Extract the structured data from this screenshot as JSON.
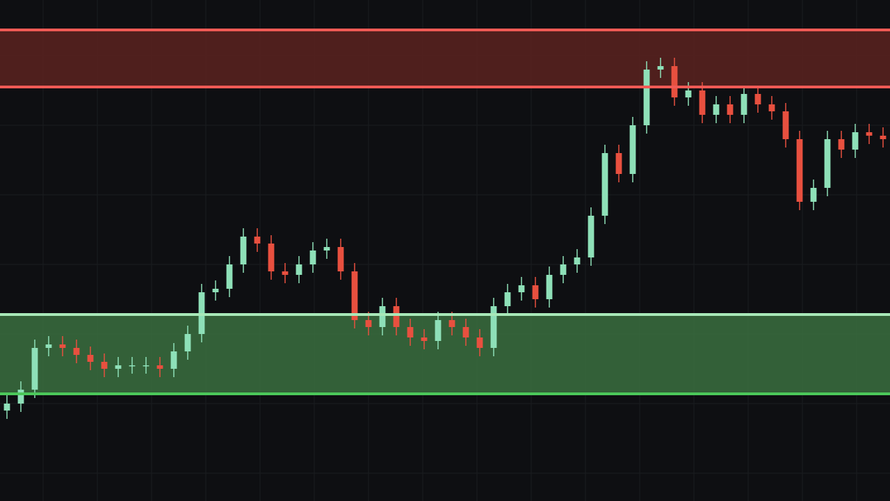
{
  "chart_data": {
    "type": "candlestick",
    "background": "#0e0f12",
    "up_color": "#8ee0b8",
    "down_color": "#e8503f",
    "ylim": [
      0,
      720
    ],
    "grid": true,
    "grid_color": "#1a1c20",
    "open": [
      130,
      140,
      160,
      220,
      225,
      220,
      210,
      200,
      190,
      195,
      195,
      195,
      190,
      215,
      240,
      300,
      305,
      340,
      380,
      370,
      330,
      325,
      340,
      360,
      365,
      330,
      260,
      250,
      280,
      250,
      235,
      230,
      260,
      250,
      235,
      220,
      280,
      300,
      310,
      290,
      325,
      340,
      350,
      410,
      500,
      470,
      540,
      620,
      625,
      580,
      590,
      555,
      570,
      555,
      585,
      570,
      560,
      520,
      430,
      450,
      520,
      505,
      530,
      525
    ],
    "high": [
      152,
      172,
      232,
      237,
      237,
      232,
      222,
      212,
      207,
      207,
      207,
      207,
      227,
      252,
      312,
      317,
      352,
      392,
      392,
      382,
      342,
      352,
      372,
      377,
      377,
      342,
      272,
      292,
      292,
      262,
      247,
      272,
      272,
      262,
      247,
      292,
      312,
      322,
      322,
      337,
      352,
      362,
      422,
      512,
      512,
      552,
      632,
      637,
      637,
      602,
      602,
      582,
      582,
      597,
      597,
      582,
      572,
      532,
      462,
      532,
      532,
      542,
      542,
      537
    ],
    "low": [
      118,
      128,
      148,
      208,
      208,
      198,
      188,
      178,
      178,
      183,
      183,
      178,
      178,
      203,
      228,
      288,
      293,
      328,
      358,
      318,
      313,
      313,
      328,
      348,
      318,
      248,
      238,
      238,
      238,
      223,
      218,
      218,
      238,
      223,
      208,
      208,
      268,
      288,
      278,
      278,
      313,
      328,
      338,
      398,
      458,
      458,
      528,
      608,
      568,
      568,
      543,
      543,
      543,
      543,
      558,
      548,
      508,
      418,
      418,
      438,
      493,
      493,
      513,
      508
    ],
    "close": [
      140,
      160,
      220,
      225,
      220,
      210,
      200,
      190,
      195,
      195,
      195,
      190,
      215,
      240,
      300,
      305,
      340,
      380,
      370,
      330,
      325,
      340,
      360,
      365,
      330,
      260,
      250,
      280,
      250,
      235,
      230,
      260,
      250,
      235,
      220,
      280,
      300,
      310,
      290,
      325,
      340,
      350,
      410,
      500,
      470,
      540,
      620,
      625,
      580,
      590,
      555,
      570,
      555,
      585,
      570,
      560,
      520,
      430,
      450,
      520,
      505,
      530,
      525,
      520
    ],
    "zones": [
      {
        "low": 595,
        "high": 677,
        "fill": "#5a2220",
        "low_line": "#f05a55",
        "high_line": "#f05a55"
      },
      {
        "low": 154,
        "high": 268,
        "fill": "#3a6e40",
        "low_line": "#4cc85a",
        "high_line": "#a8e8b8"
      }
    ]
  }
}
